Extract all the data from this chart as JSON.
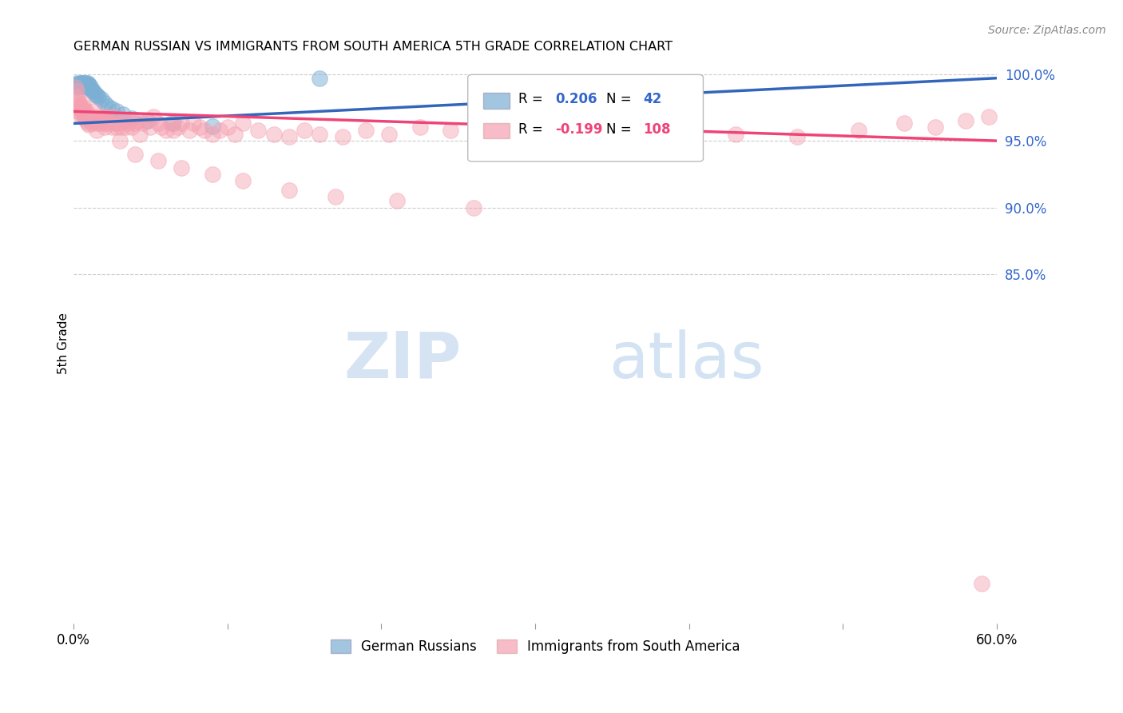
{
  "title": "GERMAN RUSSIAN VS IMMIGRANTS FROM SOUTH AMERICA 5TH GRADE CORRELATION CHART",
  "source": "Source: ZipAtlas.com",
  "ylabel": "5th Grade",
  "x_min": 0.0,
  "x_max": 0.6,
  "y_min": 0.588,
  "y_max": 1.008,
  "y_ticks": [
    1.0,
    0.95,
    0.9,
    0.85
  ],
  "y_tick_labels": [
    "100.0%",
    "95.0%",
    "90.0%",
    "85.0%"
  ],
  "x_ticks": [
    0.0,
    0.1,
    0.2,
    0.3,
    0.4,
    0.5,
    0.6
  ],
  "x_tick_labels": [
    "0.0%",
    "",
    "",
    "",
    "",
    "",
    "60.0%"
  ],
  "blue_R": 0.206,
  "blue_N": 42,
  "pink_R": -0.199,
  "pink_N": 108,
  "blue_color": "#7BAFD4",
  "pink_color": "#F4A0B0",
  "blue_line_color": "#3366BB",
  "pink_line_color": "#EE4477",
  "watermark_zip": "ZIP",
  "watermark_atlas": "atlas",
  "watermark_color_zip": "#C8D8EE",
  "watermark_color_atlas": "#A8C8E8",
  "legend_label_blue": "German Russians",
  "legend_label_pink": "Immigrants from South America",
  "blue_x": [
    0.001,
    0.002,
    0.002,
    0.003,
    0.003,
    0.004,
    0.004,
    0.004,
    0.005,
    0.005,
    0.005,
    0.005,
    0.006,
    0.006,
    0.006,
    0.007,
    0.007,
    0.008,
    0.008,
    0.008,
    0.009,
    0.009,
    0.01,
    0.01,
    0.011,
    0.011,
    0.012,
    0.013,
    0.014,
    0.015,
    0.016,
    0.018,
    0.02,
    0.022,
    0.025,
    0.028,
    0.032,
    0.038,
    0.048,
    0.065,
    0.09,
    0.16
  ],
  "blue_y": [
    0.992,
    0.993,
    0.991,
    0.992,
    0.99,
    0.991,
    0.993,
    0.992,
    0.993,
    0.992,
    0.993,
    0.991,
    0.993,
    0.992,
    0.991,
    0.993,
    0.992,
    0.993,
    0.992,
    0.991,
    0.993,
    0.991,
    0.992,
    0.99,
    0.991,
    0.989,
    0.988,
    0.987,
    0.985,
    0.984,
    0.983,
    0.981,
    0.978,
    0.976,
    0.974,
    0.972,
    0.97,
    0.967,
    0.965,
    0.963,
    0.961,
    0.997
  ],
  "pink_x": [
    0.001,
    0.002,
    0.002,
    0.003,
    0.003,
    0.004,
    0.005,
    0.005,
    0.006,
    0.006,
    0.007,
    0.007,
    0.008,
    0.008,
    0.009,
    0.009,
    0.01,
    0.01,
    0.011,
    0.012,
    0.013,
    0.013,
    0.014,
    0.015,
    0.015,
    0.016,
    0.017,
    0.018,
    0.019,
    0.02,
    0.021,
    0.022,
    0.023,
    0.025,
    0.026,
    0.027,
    0.028,
    0.03,
    0.031,
    0.033,
    0.034,
    0.035,
    0.037,
    0.038,
    0.04,
    0.042,
    0.043,
    0.045,
    0.047,
    0.05,
    0.052,
    0.055,
    0.057,
    0.06,
    0.063,
    0.065,
    0.068,
    0.07,
    0.075,
    0.078,
    0.082,
    0.085,
    0.09,
    0.095,
    0.1,
    0.105,
    0.11,
    0.12,
    0.13,
    0.14,
    0.15,
    0.16,
    0.175,
    0.19,
    0.205,
    0.225,
    0.245,
    0.27,
    0.3,
    0.33,
    0.36,
    0.39,
    0.43,
    0.47,
    0.51,
    0.54,
    0.56,
    0.58,
    0.595,
    0.002,
    0.003,
    0.004,
    0.005,
    0.006,
    0.007,
    0.008,
    0.02,
    0.03,
    0.04,
    0.055,
    0.07,
    0.09,
    0.11,
    0.14,
    0.17,
    0.21,
    0.26,
    0.59
  ],
  "pink_y": [
    0.99,
    0.987,
    0.983,
    0.98,
    0.975,
    0.977,
    0.973,
    0.968,
    0.975,
    0.97,
    0.972,
    0.968,
    0.97,
    0.965,
    0.968,
    0.963,
    0.967,
    0.962,
    0.965,
    0.963,
    0.972,
    0.968,
    0.965,
    0.963,
    0.958,
    0.965,
    0.963,
    0.965,
    0.968,
    0.963,
    0.968,
    0.965,
    0.963,
    0.96,
    0.968,
    0.963,
    0.96,
    0.963,
    0.96,
    0.965,
    0.96,
    0.963,
    0.965,
    0.96,
    0.963,
    0.965,
    0.955,
    0.963,
    0.965,
    0.96,
    0.968,
    0.963,
    0.96,
    0.958,
    0.963,
    0.958,
    0.96,
    0.963,
    0.958,
    0.963,
    0.96,
    0.958,
    0.955,
    0.958,
    0.96,
    0.955,
    0.963,
    0.958,
    0.955,
    0.953,
    0.958,
    0.955,
    0.953,
    0.958,
    0.955,
    0.96,
    0.958,
    0.955,
    0.955,
    0.958,
    0.955,
    0.958,
    0.955,
    0.953,
    0.958,
    0.963,
    0.96,
    0.965,
    0.968,
    0.973,
    0.978,
    0.975,
    0.97,
    0.978,
    0.968,
    0.972,
    0.96,
    0.95,
    0.94,
    0.935,
    0.93,
    0.925,
    0.92,
    0.913,
    0.908,
    0.905,
    0.9,
    0.618
  ]
}
